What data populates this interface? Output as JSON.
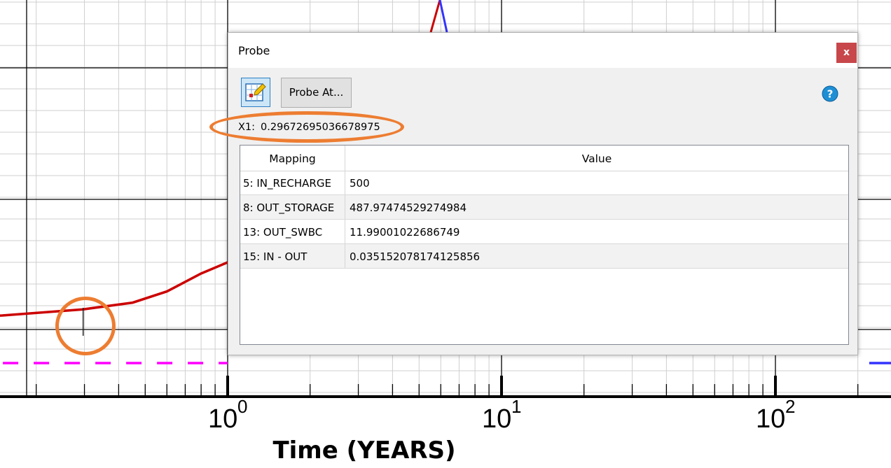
{
  "chart_data": {
    "type": "line",
    "xscale": "log",
    "xlim": [
      0.09,
      300
    ],
    "xlabel": "Time (YEARS)",
    "xticks": [
      {
        "base": "10",
        "exp": "0",
        "value": 1
      },
      {
        "base": "10",
        "exp": "1",
        "value": 10
      },
      {
        "base": "10",
        "exp": "2",
        "value": 100
      }
    ],
    "grid": true,
    "series": [
      {
        "name": "red-series",
        "color": "#cc0000",
        "style": "solid",
        "points": [
          [
            0.09,
            0.0
          ],
          [
            0.15,
            0.0025
          ],
          [
            0.2967,
            0.008
          ],
          [
            0.45,
            0.014
          ],
          [
            0.6,
            0.024
          ],
          [
            0.8,
            0.04
          ],
          [
            1.0,
            0.05
          ]
        ]
      },
      {
        "name": "magenta-series",
        "color": "#ff00ff",
        "style": "dashed",
        "points": [
          [
            0.09,
            -0.04
          ],
          [
            1.0,
            -0.04
          ]
        ]
      },
      {
        "name": "blue-series",
        "color": "#3333ff",
        "style": "solid",
        "points": [
          [
            220,
            -0.04
          ],
          [
            300,
            -0.04
          ]
        ]
      }
    ],
    "probe_marker_x": 0.29672695036678975
  },
  "probe": {
    "title": "Probe",
    "close_label": "x",
    "tool_icon": "probe-pick-icon",
    "probe_at_label": "Probe At...",
    "help_icon": "help-icon",
    "x1_label": "X1:",
    "x1_value": "0.29672695036678975",
    "table": {
      "headers": {
        "mapping": "Mapping",
        "value": "Value"
      },
      "rows": [
        {
          "mapping": "5: IN_RECHARGE",
          "value": "500"
        },
        {
          "mapping": "8: OUT_STORAGE",
          "value": "487.97474529274984"
        },
        {
          "mapping": "13: OUT_SWBC",
          "value": "11.99001022686749"
        },
        {
          "mapping": "15: IN - OUT",
          "value": "0.035152078174125856"
        }
      ]
    }
  },
  "colors": {
    "annotation": "#ed7d31",
    "close_button": "#c7474a",
    "help_icon": "#1e8fd5"
  }
}
